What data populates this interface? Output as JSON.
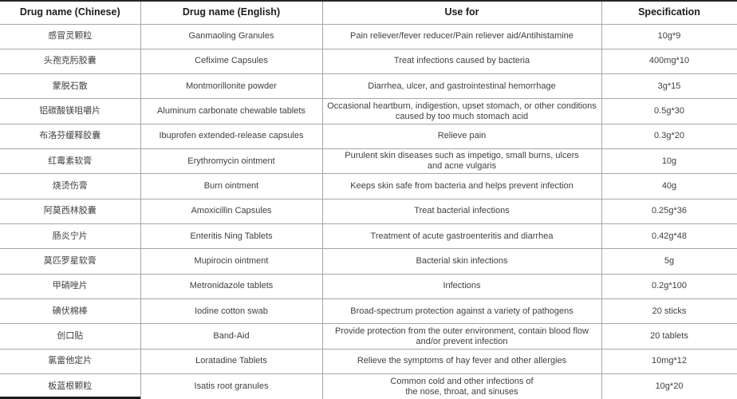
{
  "table": {
    "columns": [
      {
        "key": "cn",
        "label": "Drug name (Chinese)"
      },
      {
        "key": "en",
        "label": "Drug name (English)"
      },
      {
        "key": "use",
        "label": "Use for"
      },
      {
        "key": "spec",
        "label": "Specification"
      }
    ],
    "rows": [
      {
        "cn": "感冒灵颗粒",
        "en": "Ganmaoling Granules",
        "use": "Pain reliever/fever reducer/Pain reliever aid/Antihistamine",
        "spec": "10g*9"
      },
      {
        "cn": "头孢克肟胶囊",
        "en": "Cefixime Capsules",
        "use": "Treat infections caused by bacteria",
        "spec": "400mg*10"
      },
      {
        "cn": "蒙脱石散",
        "en": "Montmorillonite powder",
        "use": "Diarrhea, ulcer, and gastrointestinal hemorrhage",
        "spec": "3g*15"
      },
      {
        "cn": "铝碳酸镁咀嚼片",
        "en": "Aluminum carbonate chewable tablets",
        "use": "Occasional heartburn, indigestion, upset stomach, or other conditions\ncaused by too much stomach acid",
        "spec": "0.5g*30"
      },
      {
        "cn": "布洛芬缓释胶囊",
        "en": "Ibuprofen extended-release capsules",
        "use": "Relieve pain",
        "spec": "0.3g*20"
      },
      {
        "cn": "红霉素软膏",
        "en": "Erythromycin ointment",
        "use": "Purulent skin diseases such as impetigo, small burns, ulcers\nand acne vulgaris",
        "spec": "10g"
      },
      {
        "cn": "烧烫伤膏",
        "en": "Burn ointment",
        "use": "Keeps skin safe from bacteria and helps prevent infection",
        "spec": "40g"
      },
      {
        "cn": "阿莫西林胶囊",
        "en": "Amoxicillin Capsules",
        "use": "Treat bacterial infections",
        "spec": "0.25g*36"
      },
      {
        "cn": "肠炎宁片",
        "en": "Enteritis Ning Tablets",
        "use": "Treatment of acute gastroenteritis and diarrhea",
        "spec": "0.42g*48"
      },
      {
        "cn": "莫匹罗星软膏",
        "en": "Mupirocin ointment",
        "use": "Bacterial skin infections",
        "spec": "5g"
      },
      {
        "cn": "甲硝唑片",
        "en": "Metronidazole tablets",
        "use": "Infections",
        "spec": "0.2g*100"
      },
      {
        "cn": "碘伏棉棒",
        "en": "Iodine cotton swab",
        "use": "Broad-spectrum protection against a variety of pathogens",
        "spec": "20 sticks"
      },
      {
        "cn": "创口贴",
        "en": "Band-Aid",
        "use": "Provide protection from the outer environment, contain blood flow\nand/or prevent infection",
        "spec": "20 tablets"
      },
      {
        "cn": "氯雷他定片",
        "en": "Loratadine Tablets",
        "use": "Relieve the symptoms of hay fever and other allergies",
        "spec": "10mg*12"
      },
      {
        "cn": "板蓝根颗粒",
        "en": "Isatis root granules",
        "use": "Common cold and other infections of\nthe nose, throat, and sinuses",
        "spec": "10g*20"
      }
    ]
  },
  "colors": {
    "background": "#ffffff",
    "border": "#a6a6a6",
    "top_border": "#262626",
    "header_text": "#1c1c1c",
    "body_text": "#404040"
  }
}
